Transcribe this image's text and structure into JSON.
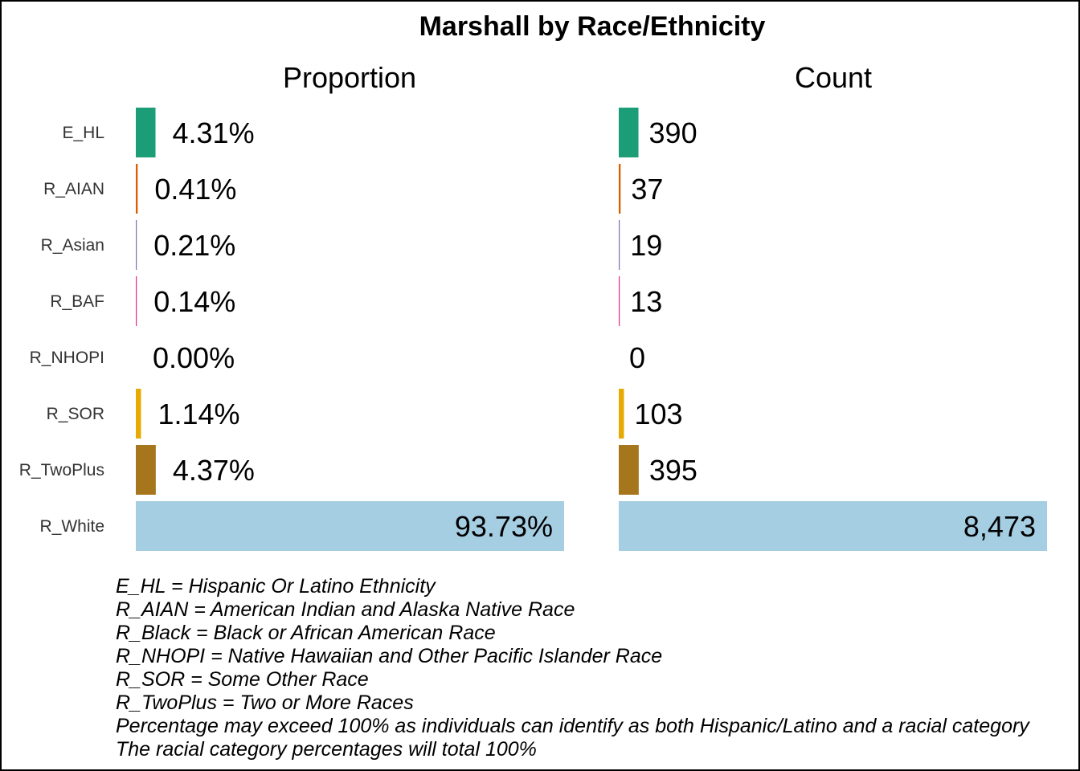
{
  "chart_data": {
    "type": "bar",
    "title": "Marshall by Race/Ethnicity",
    "orientation": "horizontal",
    "categories": [
      "E_HL",
      "R_AIAN",
      "R_Asian",
      "R_BAF",
      "R_NHOPI",
      "R_SOR",
      "R_TwoPlus",
      "R_White"
    ],
    "colors": [
      "#1b9e77",
      "#d95f02",
      "#7570b3",
      "#e7298a",
      "#66a61e",
      "#e6ab02",
      "#a6761d",
      "#a6cee3"
    ],
    "panels": [
      {
        "name": "proportion",
        "title": "Proportion",
        "values": [
          4.31,
          0.41,
          0.21,
          0.14,
          0.0,
          1.14,
          4.37,
          93.73
        ],
        "labels": [
          "4.31%",
          "0.41%",
          "0.21%",
          "0.14%",
          "0.00%",
          "1.14%",
          "4.37%",
          "93.73%"
        ],
        "xlim": [
          0,
          93.73
        ]
      },
      {
        "name": "count",
        "title": "Count",
        "values": [
          390,
          37,
          19,
          13,
          0,
          103,
          395,
          8473
        ],
        "labels": [
          "390",
          "37",
          "19",
          "13",
          "0",
          "103",
          "395",
          "8,473"
        ],
        "xlim": [
          0,
          8473
        ]
      }
    ],
    "grid": false,
    "legend": "none"
  },
  "notes": [
    "E_HL = Hispanic Or Latino Ethnicity",
    "R_AIAN = American Indian and Alaska Native Race",
    "R_Black = Black or African American Race",
    "R_NHOPI = Native Hawaiian and Other Pacific Islander Race",
    "R_SOR = Some Other Race",
    "R_TwoPlus = Two or More Races",
    "Percentage may exceed 100% as individuals can identify as both Hispanic/Latino and a racial category",
    "The racial category percentages will total 100%"
  ]
}
